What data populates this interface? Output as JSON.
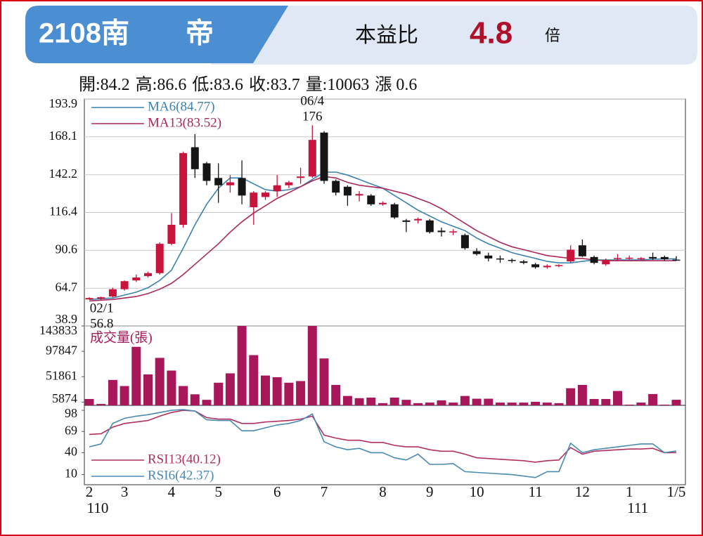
{
  "header": {
    "title": "2108南　　帝",
    "pe_label": "本益比",
    "pe_value": 4.8,
    "pe_unit": "倍"
  },
  "info": [
    {
      "label": "開:",
      "value": 84.2
    },
    {
      "label": "高:",
      "value": 86.6
    },
    {
      "label": "低:",
      "value": 83.6
    },
    {
      "label": "收:",
      "value": 83.7
    },
    {
      "label": "量:",
      "value": 10063
    },
    {
      "label": "漲 ",
      "value": 0.6
    }
  ],
  "chart_data": [
    {
      "type": "candlestick",
      "open": [
        57,
        57.5,
        59,
        64,
        70,
        73,
        75,
        95,
        108,
        161,
        150,
        140,
        135,
        140,
        120,
        127,
        131,
        135,
        140,
        141,
        171,
        138,
        134,
        128,
        128,
        122,
        122,
        111,
        111,
        111,
        104,
        103,
        101,
        90,
        87,
        85,
        84,
        83,
        81,
        79,
        80,
        83,
        94,
        86,
        81,
        85,
        85,
        85,
        86,
        86,
        84.2
      ],
      "high": [
        58.5,
        59,
        65,
        70,
        74,
        76,
        96,
        116,
        158,
        170,
        151,
        150,
        142,
        152,
        131,
        131,
        142,
        138,
        147,
        176,
        172,
        139,
        135,
        131,
        129,
        124,
        123,
        112,
        113,
        112,
        106,
        105,
        102,
        92,
        89,
        87,
        85,
        84,
        82,
        81,
        81,
        94,
        98,
        87,
        85,
        88,
        87,
        86,
        89,
        87,
        86.6
      ],
      "low": [
        57,
        56.8,
        58.5,
        63,
        69,
        72,
        74,
        94,
        106,
        140,
        135,
        123,
        130,
        122,
        108,
        125,
        127,
        133,
        136,
        140,
        136,
        128,
        121,
        124,
        121,
        121,
        112,
        103,
        109,
        102,
        100,
        101,
        91,
        87,
        83,
        82,
        82,
        81,
        78,
        78,
        79,
        82,
        86,
        81,
        80,
        83,
        84,
        84,
        84,
        83.5,
        83.6
      ],
      "close": [
        58,
        58.5,
        64,
        69.5,
        72,
        75,
        95,
        108,
        157,
        146,
        138,
        135,
        137,
        128,
        130,
        130,
        135,
        137,
        141,
        166,
        138,
        130,
        128,
        129,
        122,
        123,
        113,
        110,
        112,
        103,
        103,
        103.5,
        92,
        88,
        85,
        84.8,
        83.5,
        82,
        79,
        80,
        80.5,
        91,
        86.5,
        82,
        84,
        85.3,
        85.5,
        85.2,
        85,
        84.5,
        83.7
      ],
      "up_color": "#c8143c",
      "down_color": "#151515",
      "series": [
        {
          "name": "MA6(84.77)",
          "color": "#3b82b0",
          "values": [
            57,
            57.5,
            58,
            60,
            62,
            65,
            70,
            77,
            92,
            108,
            122,
            133,
            140,
            140,
            136,
            132,
            131,
            132,
            134,
            139,
            144,
            144,
            142,
            139,
            136,
            133,
            128,
            123,
            118,
            114,
            110,
            107,
            104,
            99,
            95,
            92,
            89,
            87,
            85,
            83,
            82,
            82,
            83,
            84,
            84,
            84,
            84,
            84,
            84.5,
            84.7,
            84.77
          ]
        },
        {
          "name": "MA13(83.52)",
          "color": "#a8285a",
          "values": [
            56,
            56.5,
            57,
            58,
            59,
            61,
            64,
            68,
            74,
            81,
            88,
            95,
            103,
            110,
            116,
            121,
            126,
            130,
            134,
            138,
            141,
            140,
            137,
            135,
            134,
            133,
            131,
            129,
            126,
            123,
            119,
            114,
            109,
            104,
            100,
            96,
            93,
            91,
            89,
            87,
            86,
            85,
            85,
            84,
            83.5,
            83.5,
            83.5,
            83.5,
            83.5,
            83.5,
            83.52
          ]
        }
      ],
      "annotations": [
        {
          "label": "06/4",
          "value": 176,
          "index": 19
        },
        {
          "label": "02/1",
          "value": 56.8,
          "index": 1
        }
      ],
      "ylim": [
        38.9,
        193.9
      ],
      "yticks": [
        38.9,
        64.7,
        90.6,
        116.4,
        142.2,
        168.1,
        193.9
      ],
      "grid": true
    },
    {
      "type": "bar",
      "title": "成交量(張)",
      "color": "#a8175a",
      "values": [
        11500,
        2500,
        46000,
        35000,
        106000,
        56000,
        86000,
        63000,
        35000,
        20000,
        10000,
        41000,
        58000,
        143833,
        91000,
        54000,
        51000,
        41000,
        44000,
        143833,
        85000,
        37000,
        17000,
        13000,
        14000,
        4000,
        14000,
        10000,
        4000,
        5000,
        9000,
        5000,
        17000,
        12000,
        12000,
        5000,
        5000,
        5000,
        6500,
        5000,
        4000,
        31000,
        37000,
        11500,
        11500,
        26000,
        1300,
        5000,
        20500,
        1300,
        10063
      ],
      "ylim": [
        0,
        143833
      ],
      "yticks": [
        5874,
        51861,
        97847,
        143833
      ]
    },
    {
      "type": "line",
      "series": [
        {
          "name": "RSI13(40.12)",
          "color": "#b03060",
          "values": [
            65,
            66,
            75,
            80,
            82,
            84,
            90,
            95,
            98,
            97,
            88,
            86,
            86,
            80,
            80,
            82,
            83,
            84,
            86,
            90,
            64,
            60,
            57,
            57,
            54,
            54,
            50,
            48,
            48,
            44,
            42,
            42,
            38,
            33,
            32,
            31,
            30,
            29,
            27,
            29,
            30,
            47,
            38,
            42,
            43,
            44,
            45,
            45,
            46,
            40,
            40.12
          ]
        },
        {
          "name": "RSI6(42.37)",
          "color": "#4a8ab0",
          "values": [
            48,
            52,
            80,
            87,
            90,
            92,
            95,
            98,
            99,
            97,
            85,
            84,
            84,
            70,
            70,
            74,
            78,
            80,
            84,
            93,
            55,
            48,
            44,
            46,
            40,
            40,
            33,
            30,
            38,
            24,
            24,
            25,
            14,
            13,
            12,
            11,
            10,
            8,
            6,
            14,
            14,
            53,
            40,
            44,
            46,
            48,
            50,
            52,
            52,
            40,
            42.37
          ]
        }
      ],
      "categories": [
        "2",
        null,
        null,
        "3",
        null,
        null,
        null,
        "4",
        null,
        null,
        null,
        "5",
        null,
        null,
        null,
        null,
        "6",
        null,
        null,
        null,
        "7",
        null,
        null,
        null,
        null,
        "8",
        null,
        null,
        null,
        "9",
        null,
        null,
        null,
        "10",
        null,
        null,
        null,
        null,
        "11",
        null,
        null,
        null,
        "12",
        null,
        null,
        null,
        "1",
        null,
        null,
        null,
        "1/5"
      ],
      "year_labels": [
        "110",
        null,
        null,
        null,
        null,
        null,
        null,
        null,
        null,
        null,
        null,
        null,
        null,
        null,
        null,
        null,
        null,
        null,
        null,
        null,
        null,
        null,
        null,
        null,
        null,
        null,
        null,
        null,
        null,
        null,
        null,
        null,
        null,
        null,
        null,
        null,
        null,
        null,
        null,
        null,
        null,
        null,
        null,
        null,
        null,
        null,
        "111",
        null,
        null,
        null,
        null
      ],
      "ylim": [
        0,
        100
      ],
      "yticks": [
        10,
        40,
        69,
        98
      ]
    }
  ]
}
